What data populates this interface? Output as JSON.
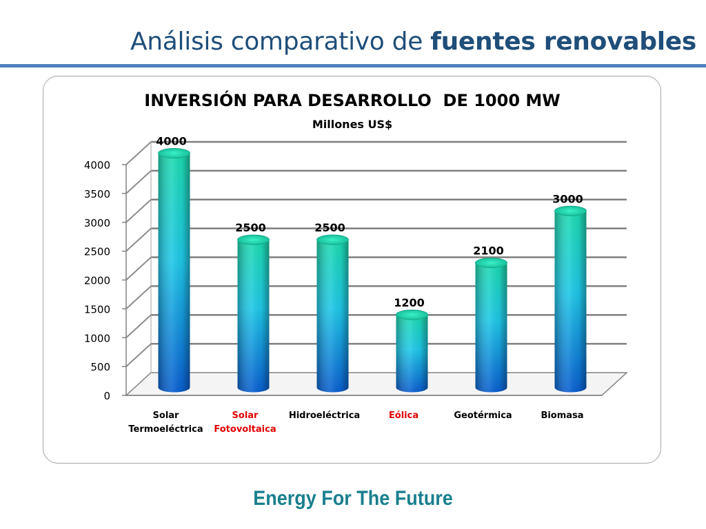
{
  "slide": {
    "title_regular": "Análisis comparativo de ",
    "title_bold": "fuentes renovables",
    "footer": "Energy For The Future"
  },
  "colors": {
    "title": "#1F4E79",
    "rule": "#4F81BD",
    "footer": "#1A7F8E",
    "highlight_label": "#E00000",
    "bar_top": "#1DDBB0",
    "bar_mid": "#1FC8E8",
    "bar_bottom": "#0A5FD0"
  },
  "chart_data": {
    "type": "bar",
    "title": "INVERSIÓN PARA DESARROLLO  DE 1000 MW",
    "subtitle": "Millones US$",
    "categories": [
      [
        "Solar",
        "Termoeléctrica"
      ],
      [
        "Solar",
        "Fotovoltaica"
      ],
      [
        "Hidroeléctrica"
      ],
      [
        "Eólica"
      ],
      [
        "Geotérmica"
      ],
      [
        "Biomasa"
      ]
    ],
    "highlighted_categories": [
      1,
      3
    ],
    "values": [
      4000,
      2500,
      2500,
      1200,
      2100,
      3000
    ],
    "data_labels": [
      "4000",
      "2500",
      "2500",
      "1200",
      "2100",
      "3000"
    ],
    "y_ticks": [
      "0",
      "500",
      "1000",
      "1500",
      "2000",
      "2500",
      "3000",
      "3500",
      "4000"
    ],
    "ylim": [
      0,
      4000
    ],
    "y_step": 500,
    "grid": true,
    "three_d": true,
    "legend": "none"
  }
}
